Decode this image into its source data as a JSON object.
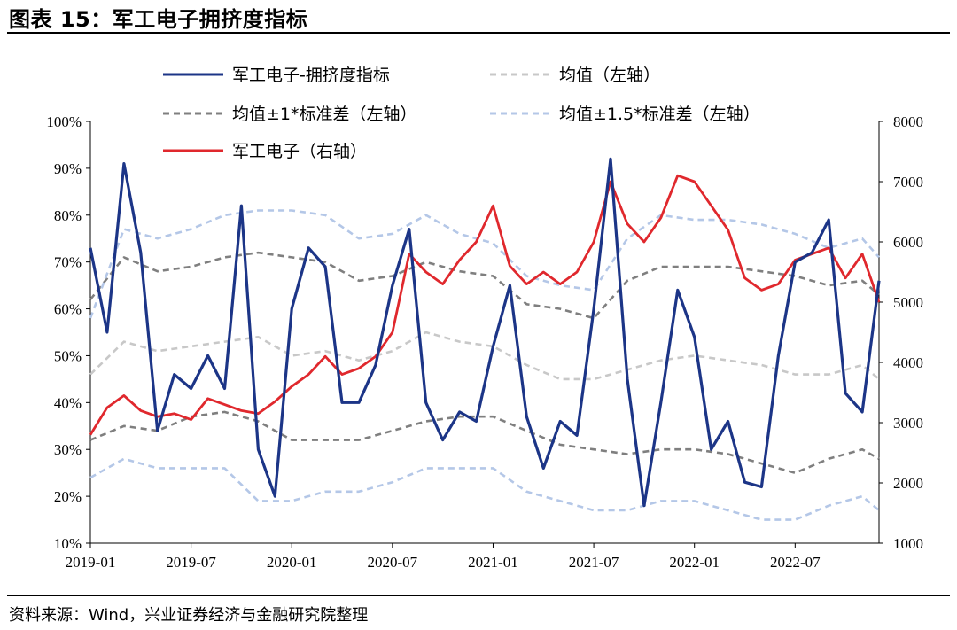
{
  "title": "图表 15：军工电子拥挤度指标",
  "source": "资料来源：Wind，兴业证券经济与金融研究院整理",
  "chart_data": {
    "type": "line",
    "x_ticks": [
      "2019-01",
      "2019-07",
      "2020-01",
      "2020-07",
      "2021-01",
      "2021-07",
      "2022-01",
      "2022-07"
    ],
    "y_left_ticks": [
      "10%",
      "20%",
      "30%",
      "40%",
      "50%",
      "60%",
      "70%",
      "80%",
      "90%",
      "100%"
    ],
    "y_right_ticks": [
      "1000",
      "2000",
      "3000",
      "4000",
      "5000",
      "6000",
      "7000",
      "8000"
    ],
    "y_left_range": [
      10,
      100
    ],
    "y_right_range": [
      1000,
      8000
    ],
    "x_range": [
      "2019-01",
      "2022-12"
    ],
    "legend": [
      {
        "label": "军工电子-拥挤度指标",
        "color": "#1c3587",
        "style": "solid"
      },
      {
        "label": "均值（左轴）",
        "color": "#c8c8c8",
        "style": "dashed"
      },
      {
        "label": "均值±1*标准差（左轴）",
        "color": "#7f7f7f",
        "style": "dashed"
      },
      {
        "label": "均值±1.5*标准差（左轴）",
        "color": "#b4c7e7",
        "style": "dashed"
      },
      {
        "label": "军工电子（右轴）",
        "color": "#e0282d",
        "style": "solid"
      }
    ],
    "series": [
      {
        "name": "军工电子-拥挤度指标",
        "axis": "left",
        "x": [
          "2019-01",
          "2019-02",
          "2019-03",
          "2019-04",
          "2019-05",
          "2019-06",
          "2019-07",
          "2019-08",
          "2019-09",
          "2019-10",
          "2019-11",
          "2019-12",
          "2020-01",
          "2020-02",
          "2020-03",
          "2020-04",
          "2020-05",
          "2020-06",
          "2020-07",
          "2020-08",
          "2020-09",
          "2020-10",
          "2020-11",
          "2020-12",
          "2021-01",
          "2021-02",
          "2021-03",
          "2021-04",
          "2021-05",
          "2021-06",
          "2021-07",
          "2021-08",
          "2021-09",
          "2021-10",
          "2021-11",
          "2021-12",
          "2022-01",
          "2022-02",
          "2022-03",
          "2022-04",
          "2022-05",
          "2022-06",
          "2022-07",
          "2022-08",
          "2022-09",
          "2022-10",
          "2022-11",
          "2022-12"
        ],
        "y": [
          73,
          55,
          91,
          72,
          34,
          46,
          43,
          50,
          43,
          82,
          30,
          20,
          60,
          73,
          69,
          40,
          40,
          48,
          65,
          77,
          40,
          32,
          38,
          36,
          52,
          65,
          37,
          26,
          36,
          33,
          60,
          92,
          45,
          18,
          40,
          64,
          54,
          30,
          36,
          23,
          22,
          50,
          70,
          72,
          79,
          42,
          38,
          66
        ]
      },
      {
        "name": "均值（左轴）",
        "axis": "left",
        "x": [
          "2019-01",
          "2019-03",
          "2019-05",
          "2019-07",
          "2019-09",
          "2019-11",
          "2020-01",
          "2020-03",
          "2020-05",
          "2020-07",
          "2020-09",
          "2020-11",
          "2021-01",
          "2021-03",
          "2021-05",
          "2021-07",
          "2021-09",
          "2021-11",
          "2022-01",
          "2022-03",
          "2022-05",
          "2022-07",
          "2022-09",
          "2022-11",
          "2022-12"
        ],
        "y": [
          46,
          53,
          51,
          52,
          53,
          54,
          50,
          51,
          49,
          51,
          55,
          53,
          52,
          48,
          45,
          45,
          47,
          49,
          50,
          49,
          48,
          46,
          46,
          48,
          45
        ]
      },
      {
        "name": "均值±1*标准差（左轴）",
        "axis": "left",
        "x": [
          "2019-01",
          "2019-03",
          "2019-05",
          "2019-07",
          "2019-09",
          "2019-11",
          "2020-01",
          "2020-03",
          "2020-05",
          "2020-07",
          "2020-09",
          "2020-11",
          "2021-01",
          "2021-03",
          "2021-05",
          "2021-07",
          "2021-09",
          "2021-11",
          "2022-01",
          "2022-03",
          "2022-05",
          "2022-07",
          "2022-09",
          "2022-11",
          "2022-12"
        ],
        "y": [
          62,
          71,
          68,
          69,
          71,
          72,
          71,
          70,
          66,
          67,
          70,
          68,
          67,
          61,
          60,
          58,
          66,
          69,
          69,
          69,
          68,
          67,
          65,
          66,
          63
        ]
      },
      {
        "name": "均值±1*标准差（左轴）-下限",
        "axis": "left",
        "x": [
          "2019-01",
          "2019-03",
          "2019-05",
          "2019-07",
          "2019-09",
          "2019-11",
          "2020-01",
          "2020-03",
          "2020-05",
          "2020-07",
          "2020-09",
          "2020-11",
          "2021-01",
          "2021-03",
          "2021-05",
          "2021-07",
          "2021-09",
          "2021-11",
          "2022-01",
          "2022-03",
          "2022-05",
          "2022-07",
          "2022-09",
          "2022-11",
          "2022-12"
        ],
        "y": [
          32,
          35,
          34,
          37,
          38,
          36,
          32,
          32,
          32,
          34,
          36,
          37,
          37,
          34,
          31,
          30,
          29,
          30,
          30,
          29,
          27,
          25,
          28,
          30,
          28
        ]
      },
      {
        "name": "均值±1.5*标准差（左轴）",
        "axis": "left",
        "x": [
          "2019-01",
          "2019-03",
          "2019-05",
          "2019-07",
          "2019-09",
          "2019-11",
          "2020-01",
          "2020-03",
          "2020-05",
          "2020-07",
          "2020-09",
          "2020-11",
          "2021-01",
          "2021-03",
          "2021-05",
          "2021-07",
          "2021-09",
          "2021-11",
          "2022-01",
          "2022-03",
          "2022-05",
          "2022-07",
          "2022-09",
          "2022-11",
          "2022-12"
        ],
        "y": [
          58,
          77,
          75,
          77,
          80,
          81,
          81,
          80,
          75,
          76,
          80,
          76,
          74,
          67,
          65,
          64,
          75,
          80,
          79,
          79,
          78,
          76,
          73,
          75,
          71
        ]
      },
      {
        "name": "均值±1.5*标准差（左轴）-下限",
        "axis": "left",
        "x": [
          "2019-01",
          "2019-03",
          "2019-05",
          "2019-07",
          "2019-09",
          "2019-11",
          "2020-01",
          "2020-03",
          "2020-05",
          "2020-07",
          "2020-09",
          "2020-11",
          "2021-01",
          "2021-03",
          "2021-05",
          "2021-07",
          "2021-09",
          "2021-11",
          "2022-01",
          "2022-03",
          "2022-05",
          "2022-07",
          "2022-09",
          "2022-11",
          "2022-12"
        ],
        "y": [
          24,
          28,
          26,
          26,
          26,
          19,
          19,
          21,
          21,
          23,
          26,
          26,
          26,
          21,
          19,
          17,
          17,
          19,
          19,
          17,
          15,
          15,
          18,
          20,
          17
        ]
      },
      {
        "name": "军工电子（右轴）",
        "axis": "right",
        "x": [
          "2019-01",
          "2019-02",
          "2019-03",
          "2019-04",
          "2019-05",
          "2019-06",
          "2019-07",
          "2019-08",
          "2019-09",
          "2019-10",
          "2019-11",
          "2019-12",
          "2020-01",
          "2020-02",
          "2020-03",
          "2020-04",
          "2020-05",
          "2020-06",
          "2020-07",
          "2020-08",
          "2020-09",
          "2020-10",
          "2020-11",
          "2020-12",
          "2021-01",
          "2021-02",
          "2021-03",
          "2021-04",
          "2021-05",
          "2021-06",
          "2021-07",
          "2021-08",
          "2021-09",
          "2021-10",
          "2021-11",
          "2021-12",
          "2022-01",
          "2022-03",
          "2022-04",
          "2022-05",
          "2022-06",
          "2022-07",
          "2022-08",
          "2022-09",
          "2022-10",
          "2022-11",
          "2022-12"
        ],
        "y": [
          2800,
          3250,
          3450,
          3200,
          3100,
          3150,
          3050,
          3400,
          3300,
          3200,
          3150,
          3350,
          3600,
          3800,
          4100,
          3800,
          3900,
          4100,
          4500,
          5800,
          5500,
          5300,
          5700,
          6000,
          6600,
          5600,
          5300,
          5500,
          5300,
          5500,
          6000,
          7000,
          6300,
          6000,
          6400,
          7100,
          7000,
          6200,
          5400,
          5200,
          5300,
          5700,
          5800,
          5900,
          5400,
          5800,
          5000
        ]
      }
    ]
  }
}
